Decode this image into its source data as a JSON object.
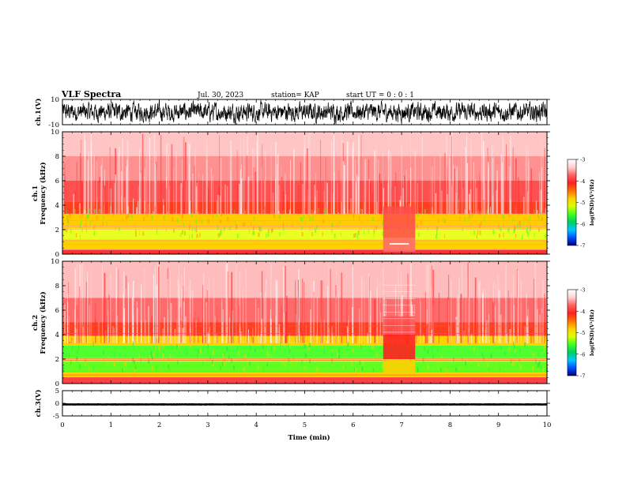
{
  "header": {
    "title": "VLF Spectra",
    "date": "Jul. 30, 2023",
    "station": "station= KAP",
    "start": "start  UT =   0 : 0  : 1"
  },
  "chart_data": [
    {
      "type": "line",
      "panel": "waveform-ch1",
      "ylabel": "ch.1(V)",
      "ylim": [
        -10,
        10
      ],
      "yticks": [
        "10",
        "-10"
      ],
      "color": "#000000",
      "description_values": {
        "typical_range": [
          -7,
          7
        ]
      }
    },
    {
      "type": "heatmap",
      "panel": "spectrogram-ch1",
      "ylabel": "ch.1\nFrequency (kHz)",
      "ylabel_lines": [
        "ch.1",
        "Frequency (kHz)"
      ],
      "ylim": [
        0,
        10
      ],
      "yticks": [
        "0",
        "2",
        "4",
        "6",
        "8",
        "10"
      ],
      "colorbar": {
        "label": "log(PSD)(V²/Hz)",
        "range": [
          -7,
          -3
        ],
        "ticks": [
          "-3",
          "-4",
          "-5",
          "-6",
          "-7"
        ]
      }
    },
    {
      "type": "heatmap",
      "panel": "spectrogram-ch2",
      "ylabel_lines": [
        "ch.2",
        "Frequency (kHz)"
      ],
      "ylim": [
        0,
        10
      ],
      "yticks": [
        "0",
        "2",
        "4",
        "6",
        "8",
        "10"
      ],
      "colorbar": {
        "label": "log(PSD)(V²/Hz)",
        "range": [
          -7,
          -3
        ],
        "ticks": [
          "-3",
          "-4",
          "-5",
          "-6",
          "-7"
        ]
      }
    },
    {
      "type": "line",
      "panel": "waveform-ch3",
      "ylabel": "ch.3(V)",
      "ylim": [
        -5,
        5
      ],
      "yticks": [
        "5",
        "0",
        "-5"
      ],
      "color": "#000000"
    }
  ],
  "xaxis": {
    "label": "Time (min)",
    "range": [
      0,
      10
    ],
    "ticks": [
      "0",
      "1",
      "2",
      "3",
      "4",
      "5",
      "6",
      "7",
      "8",
      "9",
      "10"
    ]
  },
  "colors": {
    "colormap": [
      "#00007a",
      "#0050ff",
      "#00c8ff",
      "#00d060",
      "#40ff20",
      "#d8ff00",
      "#ffd000",
      "#ff7000",
      "#ff2020",
      "#ff6060",
      "#ffd0d0",
      "#ffffff"
    ]
  }
}
